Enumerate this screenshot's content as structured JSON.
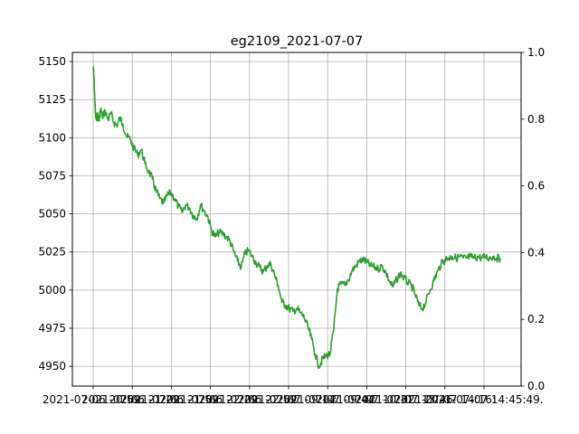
{
  "chart_data": {
    "type": "line",
    "title": "eg2109_2021-07-07",
    "xlabel": "",
    "ylabel": "",
    "grid": true,
    "ylim": [
      4937,
      5156
    ],
    "y2lim": [
      0.0,
      1.0
    ],
    "yticks": [
      4950,
      4975,
      5000,
      5025,
      5050,
      5075,
      5100,
      5125,
      5150
    ],
    "y2ticks": [
      "0.0",
      "0.2",
      "0.4",
      "0.6",
      "0.8",
      "1.0"
    ],
    "xticks": [
      "2021-07-06 20:59:",
      "2021-07-06 21:29:",
      "2021-07-06 21:59:",
      "2021-07-06 22:29:",
      "2021-07-06 22:59:",
      "2021-07-07 09:14:",
      "2021-07-07 09:44:",
      "2021-07-07 10:31:",
      "2021-07-07 13:46:",
      "2021-07-07 14:16:",
      "2021-07-07 14:45:49."
    ],
    "series": [
      {
        "color": "#2ca02c",
        "x": [
          0,
          1,
          2,
          3,
          4,
          6,
          8,
          10,
          13,
          16,
          20,
          24,
          28,
          32,
          36,
          40,
          45,
          50,
          55,
          60,
          65,
          70,
          75,
          80,
          85,
          90,
          95,
          100,
          105,
          110,
          115,
          120,
          125,
          130,
          135,
          140,
          145,
          150,
          155,
          160,
          165,
          170,
          175,
          180,
          185,
          190,
          195,
          200,
          205,
          210,
          215,
          220,
          225,
          230,
          235,
          240,
          245,
          250,
          255,
          260,
          265,
          270,
          275,
          280,
          285,
          290,
          295,
          300,
          305,
          310,
          315,
          320,
          325,
          330,
          335,
          340,
          345,
          350,
          355,
          360,
          365,
          370,
          375,
          380,
          385,
          390,
          395,
          400,
          405,
          410,
          415,
          420,
          425,
          430,
          435,
          440,
          445,
          450,
          455,
          460,
          465,
          470,
          475,
          480,
          485,
          490,
          495,
          500,
          505,
          510,
          515,
          520,
          525,
          530,
          535,
          540,
          545,
          550
        ],
        "y": [
          5147,
          5140,
          5128,
          5116,
          5112,
          5115,
          5111,
          5119,
          5113,
          5118,
          5112,
          5116,
          5110,
          5108,
          5113,
          5109,
          5101,
          5099,
          5093,
          5089,
          5092,
          5083,
          5078,
          5073,
          5065,
          5060,
          5057,
          5062,
          5064,
          5060,
          5055,
          5051,
          5056,
          5054,
          5049,
          5047,
          5056,
          5052,
          5048,
          5039,
          5035,
          5038,
          5037,
          5035,
          5032,
          5025,
          5019,
          5015,
          5024,
          5026,
          5022,
          5018,
          5015,
          5012,
          5016,
          5017,
          5010,
          5003,
          4992,
          4990,
          4988,
          4986,
          4988,
          4985,
          4982,
          4976,
          4968,
          4958,
          4950,
          4955,
          4957,
          4958,
          4974,
          5001,
          5004,
          5003,
          5007,
          5013,
          5016,
          5019,
          5020,
          5018,
          5016,
          5015,
          5014,
          5016,
          5012,
          5006,
          5002,
          5007,
          5011,
          5008,
          5005,
          5003,
          4997,
          4990,
          4988,
          4993,
          5000,
          5006,
          5012,
          5017,
          5020,
          5021,
          5022,
          5021,
          5022,
          5021,
          5021,
          5022,
          5021,
          5022,
          5021,
          5022,
          5021,
          5022,
          5021,
          5021
        ]
      }
    ]
  }
}
